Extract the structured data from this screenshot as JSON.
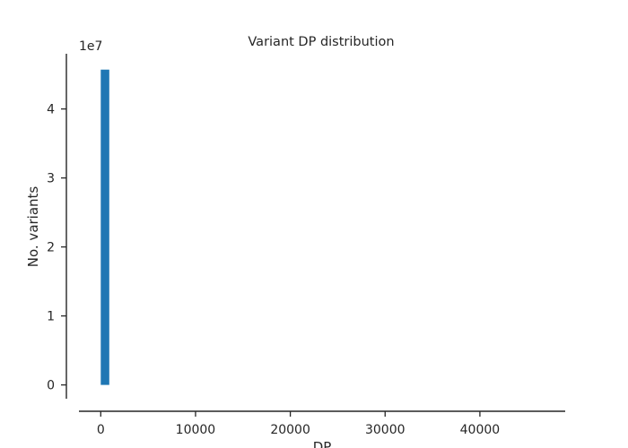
{
  "chart_data": {
    "type": "bar",
    "title": "Variant DP distribution",
    "xlabel": "DP",
    "ylabel": "No. variants",
    "y_offset_label": "1e7",
    "x_range": [
      -2300,
      49000
    ],
    "y_range": [
      -0.2,
      4.8
    ],
    "x_ticks": [
      0,
      10000,
      20000,
      30000,
      40000
    ],
    "y_ticks": [
      0,
      1,
      2,
      3,
      4
    ],
    "x_tick_labels": [
      "0",
      "10000",
      "20000",
      "30000",
      "40000"
    ],
    "y_tick_labels": [
      "0",
      "1",
      "2",
      "3",
      "4"
    ],
    "bins": [
      {
        "x_start": 0,
        "x_end": 900,
        "value": 4.57
      }
    ],
    "bar_color": "#1f77b4",
    "axis_color": "#262626",
    "grid": false,
    "legend": null
  }
}
